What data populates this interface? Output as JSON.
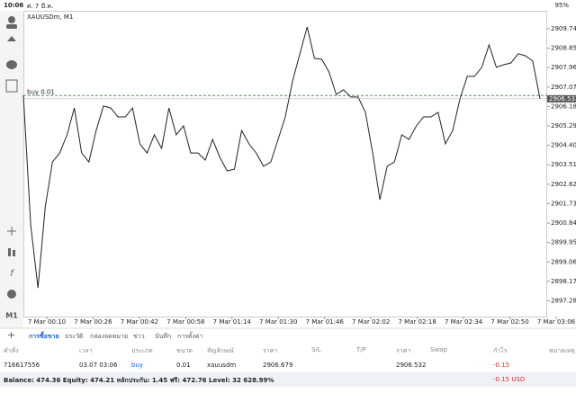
{
  "status_bar": {
    "time": "10:06",
    "date": "ศ. 7 มี.ค.",
    "battery": "95%"
  },
  "chart_data": {
    "type": "line",
    "title": "XAUUSDm, M1",
    "color": "#222222",
    "series": [
      {
        "values": [
          2906.69,
          2900.76,
          2897.87,
          2901.58,
          2903.64,
          2904.05,
          2904.88,
          2906.11,
          2904.05,
          2903.64,
          2905.08,
          2906.2,
          2906.11,
          2905.7,
          2905.7,
          2906.11,
          2904.47,
          2904.05,
          2904.88,
          2904.26,
          2906.11,
          2904.88,
          2905.29,
          2904.05,
          2904.05,
          2903.72,
          2904.67,
          2903.85,
          2903.23,
          2903.31,
          2905.08,
          2904.47,
          2904.05,
          2903.44,
          2903.64,
          2904.67,
          2905.7,
          2907.35,
          2908.59,
          2909.82,
          2908.38,
          2908.34,
          2907.76,
          2906.73,
          2906.94,
          2906.61,
          2906.61,
          2905.91,
          2904.05,
          2901.91,
          2903.44,
          2903.64,
          2904.88,
          2904.67,
          2905.29,
          2905.7,
          2905.7,
          2905.91,
          2904.47,
          2905.08,
          2906.53,
          2907.56,
          2907.56,
          2907.97,
          2909.0,
          2907.97,
          2908.09,
          2908.17,
          2908.59,
          2908.5,
          2908.26,
          2906.53
        ]
      }
    ],
    "ylim": [
      2896.56,
      2910.56
    ],
    "yticks": [
      {
        "value": 2909.74,
        "label": "2909.740"
      },
      {
        "value": 2908.85,
        "label": "2908.850"
      },
      {
        "value": 2907.96,
        "label": "2907.960"
      },
      {
        "value": 2907.07,
        "label": "2907.070"
      },
      {
        "value": 2906.18,
        "label": "2906.180"
      },
      {
        "value": 2905.29,
        "label": "2905.290"
      },
      {
        "value": 2904.4,
        "label": "2904.400"
      },
      {
        "value": 2903.51,
        "label": "2903.510"
      },
      {
        "value": 2902.62,
        "label": "2902.620"
      },
      {
        "value": 2901.73,
        "label": "2901.730"
      },
      {
        "value": 2900.84,
        "label": "2900.840"
      },
      {
        "value": 2899.95,
        "label": "2899.950"
      },
      {
        "value": 2899.06,
        "label": "2899.060"
      },
      {
        "value": 2898.17,
        "label": "2898.170"
      },
      {
        "value": 2897.28,
        "label": "2897.280"
      }
    ],
    "xtick_labels": [
      "7 Mar 00:10",
      "7 Mar 00:26",
      "7 Mar 00:42",
      "7 Mar 00:58",
      "7 Mar 01:14",
      "7 Mar 01:30",
      "7 Mar 01:46",
      "7 Mar 02:02",
      "7 Mar 02:18",
      "7 Mar 02:34",
      "7 Mar 02:50",
      "7 Mar 03:06"
    ],
    "buy_line": {
      "label": "buy 0.01",
      "value": 2906.679
    },
    "current_price": 2906.532
  },
  "sidebar": {
    "timeframe": "M1"
  },
  "tabs": [
    "การซื้อขาย",
    "ประวัติ",
    "กล่องจดหมาย",
    "ข่าว",
    "บันทึก",
    "การตั้งค่า"
  ],
  "table": {
    "headers": [
      "คำสั่ง",
      "เวลา",
      "ประเภท",
      "ขนาด",
      "สัญลักษณ์",
      "ราคา",
      "S/L",
      "T/P",
      "ราคา",
      "Swap",
      "กำไร",
      "หมายเหตุ"
    ],
    "rows": [
      [
        "716617556",
        "03.07 03:06",
        "buy",
        "0.01",
        "xauusdm",
        "2906.679",
        "",
        "",
        "2906.532",
        "",
        "-0.15",
        ""
      ]
    ]
  },
  "summary": {
    "text": "Balance: 474.36 Equity: 474.21 หลักประกัน: 1.45 ฟรี: 472.76 Level: 32 628.99%",
    "profit": "-0.15 USD"
  }
}
